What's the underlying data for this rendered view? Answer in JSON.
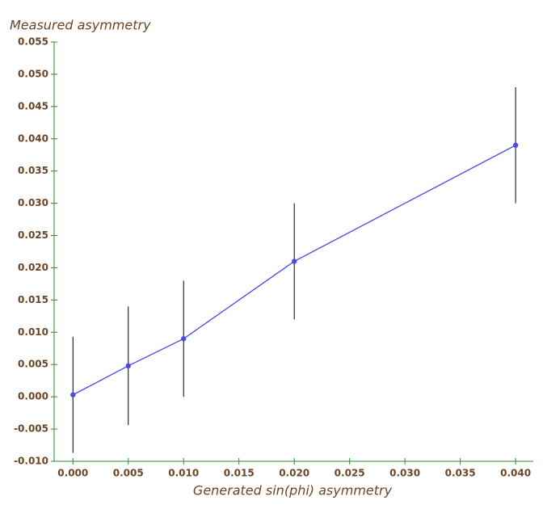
{
  "chart_data": {
    "type": "line",
    "x_label": "Generated sin(phi) asymmetry",
    "y_label": "Measured asymmetry",
    "x": [
      0.0,
      0.005,
      0.01,
      0.02,
      0.04
    ],
    "values": [
      0.0003,
      0.0048,
      0.009,
      0.021,
      0.039
    ],
    "errors": [
      0.009,
      0.0092,
      0.009,
      0.009,
      0.009
    ],
    "color": "#4a4ae8",
    "error_color": "#000000",
    "axis_color": "#2e8b2e",
    "label_color": "#6b4524",
    "xlim": [
      -0.0017,
      0.0416
    ],
    "ylim": [
      -0.01,
      0.055
    ],
    "xticks": [
      {
        "value": 0,
        "label": "0.000"
      },
      {
        "value": 0.005,
        "label": "0.005"
      },
      {
        "value": 0.01,
        "label": "0.010"
      },
      {
        "value": 0.015,
        "label": "0.015"
      },
      {
        "value": 0.02,
        "label": "0.020"
      },
      {
        "value": 0.025,
        "label": "0.025"
      },
      {
        "value": 0.03,
        "label": "0.030"
      },
      {
        "value": 0.035,
        "label": "0.035"
      },
      {
        "value": 0.04,
        "label": "0.040"
      }
    ],
    "yticks": [
      {
        "value": -0.01,
        "label": "-0.010"
      },
      {
        "value": -0.005,
        "label": "-0.005"
      },
      {
        "value": 0,
        "label": "0.000"
      },
      {
        "value": 0.005,
        "label": "0.005"
      },
      {
        "value": 0.01,
        "label": "0.010"
      },
      {
        "value": 0.015,
        "label": "0.015"
      },
      {
        "value": 0.02,
        "label": "0.020"
      },
      {
        "value": 0.025,
        "label": "0.025"
      },
      {
        "value": 0.03,
        "label": "0.030"
      },
      {
        "value": 0.035,
        "label": "0.035"
      },
      {
        "value": 0.04,
        "label": "0.040"
      },
      {
        "value": 0.045,
        "label": "0.045"
      },
      {
        "value": 0.05,
        "label": "0.050"
      },
      {
        "value": 0.055,
        "label": "0.055"
      }
    ]
  }
}
